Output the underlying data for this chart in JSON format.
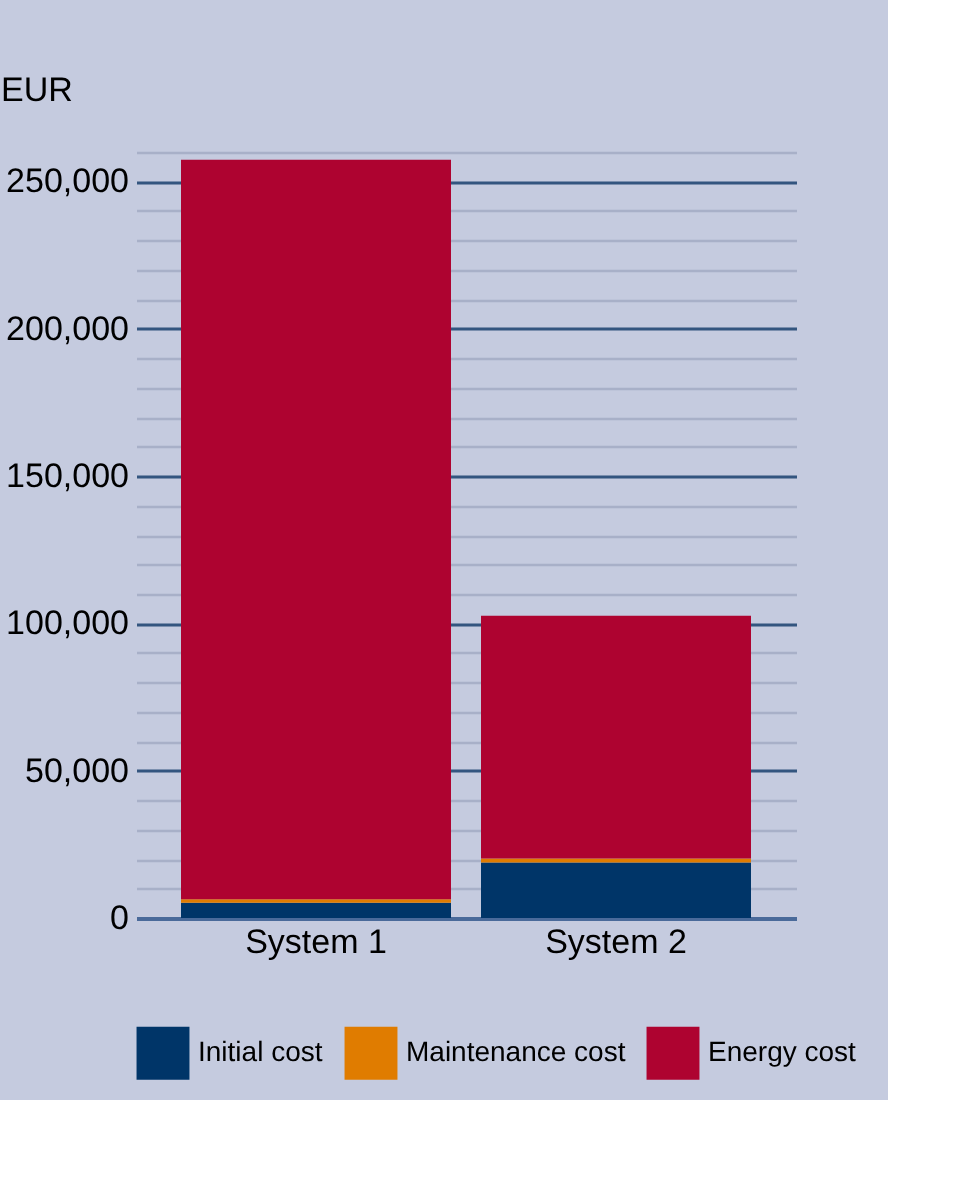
{
  "chart_data": {
    "type": "bar",
    "stacked": true,
    "ylabel": "EUR",
    "categories": [
      "System 1",
      "System 2"
    ],
    "series": [
      {
        "name": "Initial cost",
        "color": "#003568",
        "values": [
          5200,
          18800
        ]
      },
      {
        "name": "Maintenance cost",
        "color": "#e07c00",
        "values": [
          1200,
          1400
        ]
      },
      {
        "name": "Energy cost",
        "color": "#ae0330",
        "values": [
          251000,
          82400
        ]
      }
    ],
    "ylim": [
      0,
      260000
    ],
    "yticks": [
      0,
      {
        "value": 10000,
        "label": null
      },
      {
        "value": 20000,
        "label": null
      },
      {
        "value": 30000,
        "label": null
      },
      {
        "value": 40000,
        "label": null
      },
      {
        "value": 50000,
        "label": "50,000"
      },
      {
        "value": 60000,
        "label": null
      },
      {
        "value": 70000,
        "label": null
      },
      {
        "value": 80000,
        "label": null
      },
      {
        "value": 90000,
        "label": null
      },
      {
        "value": 100000,
        "label": "100,000"
      },
      {
        "value": 110000,
        "label": null
      },
      {
        "value": 120000,
        "label": null
      },
      {
        "value": 130000,
        "label": null
      },
      {
        "value": 140000,
        "label": null
      },
      {
        "value": 150000,
        "label": "150,000"
      },
      {
        "value": 160000,
        "label": null
      },
      {
        "value": 170000,
        "label": null
      },
      {
        "value": 180000,
        "label": null
      },
      {
        "value": 190000,
        "label": null
      },
      {
        "value": 200000,
        "label": "200,000"
      },
      {
        "value": 210000,
        "label": null
      },
      {
        "value": 220000,
        "label": null
      },
      {
        "value": 230000,
        "label": null
      },
      {
        "value": 240000,
        "label": null
      },
      {
        "value": 250000,
        "label": "250,000"
      },
      {
        "value": 260000,
        "label": null
      }
    ],
    "grid": true,
    "legend": "bottom"
  }
}
